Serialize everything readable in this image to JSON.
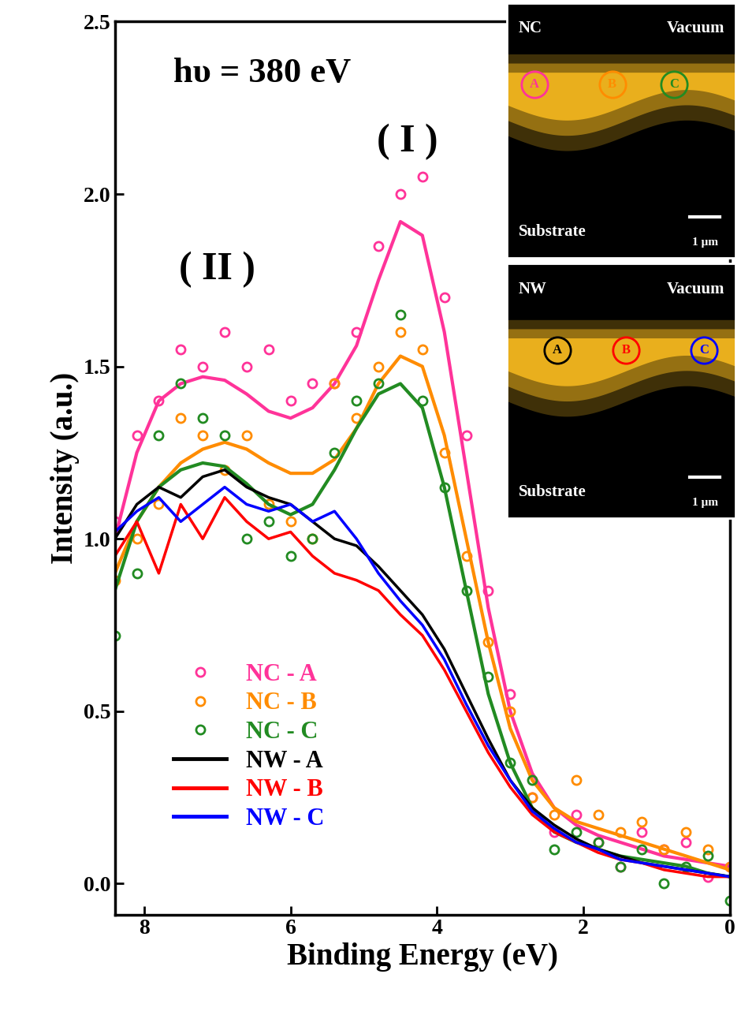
{
  "chart_data": {
    "type": "line",
    "x_label": "Binding Energy (eV)",
    "y_label": "Intensity (a.u.)",
    "annotations": [
      {
        "text": "hυ = 380 eV",
        "x": 7.6,
        "y": 2.35
      },
      {
        "text": "( I )",
        "x": 4.4,
        "y": 2.15
      },
      {
        "text": "( II )",
        "x": 7.0,
        "y": 1.78
      }
    ],
    "xlim": [
      8.4,
      0
    ],
    "ylim": [
      -0.09,
      2.5
    ],
    "xticks": [
      8,
      6,
      4,
      2,
      0
    ],
    "yticks": [
      {
        "value": 0,
        "label": "0.0"
      },
      {
        "value": 0.5,
        "label": "0.5"
      },
      {
        "value": 1.0,
        "label": "1.0"
      },
      {
        "value": 1.5,
        "label": "1.5"
      },
      {
        "value": 2.0,
        "label": "2.0"
      },
      {
        "value": 2.5,
        "label": "2.5"
      }
    ],
    "grid": false,
    "legend": "lower left",
    "x": [
      8.4,
      8.1,
      7.8,
      7.5,
      7.2,
      6.9,
      6.6,
      6.3,
      6.0,
      5.7,
      5.4,
      5.1,
      4.8,
      4.5,
      4.2,
      3.9,
      3.6,
      3.3,
      3.0,
      2.7,
      2.4,
      2.1,
      1.8,
      1.5,
      1.2,
      0.9,
      0.6,
      0.3,
      0.0
    ],
    "series": [
      {
        "name": "NC - A",
        "color": "#ff3399",
        "type": "scatter",
        "marker": "circle",
        "values": [
          1.05,
          1.3,
          1.4,
          1.55,
          1.5,
          1.6,
          1.5,
          1.55,
          1.4,
          1.45,
          1.45,
          1.6,
          1.85,
          2.0,
          2.05,
          1.7,
          1.3,
          0.85,
          0.55,
          0.25,
          0.15,
          0.2,
          0.12,
          0.05,
          0.15,
          0.1,
          0.12,
          0.02,
          0.05
        ],
        "fit": [
          1.0,
          1.25,
          1.4,
          1.45,
          1.47,
          1.46,
          1.42,
          1.37,
          1.35,
          1.38,
          1.45,
          1.56,
          1.75,
          1.92,
          1.88,
          1.6,
          1.2,
          0.8,
          0.5,
          0.32,
          0.22,
          0.17,
          0.14,
          0.12,
          0.1,
          0.08,
          0.07,
          0.06,
          0.05
        ]
      },
      {
        "name": "NC - B",
        "color": "#ff8c00",
        "type": "scatter",
        "marker": "circle",
        "values": [
          0.88,
          1.0,
          1.1,
          1.35,
          1.3,
          1.2,
          1.3,
          1.1,
          1.05,
          1.0,
          1.45,
          1.35,
          1.5,
          1.6,
          1.55,
          1.25,
          0.95,
          0.7,
          0.5,
          0.25,
          0.2,
          0.3,
          0.2,
          0.15,
          0.18,
          0.1,
          0.15,
          0.1,
          0.05
        ],
        "fit": [
          0.9,
          1.05,
          1.15,
          1.22,
          1.26,
          1.28,
          1.26,
          1.22,
          1.19,
          1.19,
          1.23,
          1.32,
          1.45,
          1.53,
          1.5,
          1.3,
          1.0,
          0.7,
          0.45,
          0.3,
          0.22,
          0.18,
          0.16,
          0.14,
          0.12,
          0.1,
          0.08,
          0.06,
          0.04
        ]
      },
      {
        "name": "NC - C",
        "color": "#228b22",
        "type": "scatter",
        "marker": "circle",
        "values": [
          0.72,
          0.9,
          1.3,
          1.45,
          1.35,
          1.3,
          1.0,
          1.05,
          0.95,
          1.0,
          1.25,
          1.4,
          1.45,
          1.65,
          1.4,
          1.15,
          0.85,
          0.6,
          0.35,
          0.3,
          0.1,
          0.15,
          0.12,
          0.05,
          0.1,
          0.0,
          0.05,
          0.08,
          -0.05
        ],
        "fit": [
          0.85,
          1.05,
          1.15,
          1.2,
          1.22,
          1.21,
          1.16,
          1.1,
          1.07,
          1.1,
          1.2,
          1.32,
          1.42,
          1.45,
          1.38,
          1.15,
          0.85,
          0.55,
          0.35,
          0.22,
          0.15,
          0.12,
          0.1,
          0.08,
          0.07,
          0.06,
          0.05,
          0.03,
          0.02
        ]
      },
      {
        "name": "NW - A",
        "color": "#000000",
        "type": "line",
        "line_style": "solid",
        "values": [
          1.0,
          1.1,
          1.15,
          1.12,
          1.18,
          1.2,
          1.15,
          1.12,
          1.1,
          1.05,
          1.0,
          0.98,
          0.92,
          0.85,
          0.78,
          0.68,
          0.55,
          0.42,
          0.3,
          0.22,
          0.17,
          0.13,
          0.1,
          0.08,
          0.06,
          0.05,
          0.04,
          0.03,
          0.02
        ]
      },
      {
        "name": "NW - B",
        "color": "#ff0000",
        "type": "line",
        "line_style": "solid",
        "values": [
          0.95,
          1.05,
          0.9,
          1.1,
          1.0,
          1.12,
          1.05,
          1.0,
          1.02,
          0.95,
          0.9,
          0.88,
          0.85,
          0.78,
          0.72,
          0.62,
          0.5,
          0.38,
          0.28,
          0.2,
          0.15,
          0.12,
          0.09,
          0.07,
          0.06,
          0.04,
          0.03,
          0.02,
          0.02
        ]
      },
      {
        "name": "NW - C",
        "color": "#0000ff",
        "type": "line",
        "line_style": "solid",
        "values": [
          1.02,
          1.08,
          1.12,
          1.05,
          1.1,
          1.15,
          1.1,
          1.08,
          1.1,
          1.05,
          1.08,
          1.0,
          0.9,
          0.82,
          0.75,
          0.65,
          0.52,
          0.4,
          0.3,
          0.21,
          0.16,
          0.12,
          0.1,
          0.07,
          0.06,
          0.05,
          0.04,
          0.03,
          0.02
        ]
      }
    ]
  },
  "insets": [
    {
      "label": "NC",
      "top": "Vacuum",
      "bottom": "Substrate",
      "scale": "1 μm",
      "points": [
        {
          "label": "A",
          "color": "#ff3399"
        },
        {
          "label": "B",
          "color": "#ff8c00"
        },
        {
          "label": "C",
          "color": "#228b22"
        }
      ]
    },
    {
      "label": "NW",
      "top": "Vacuum",
      "bottom": "Substrate",
      "scale": "1 μm",
      "points": [
        {
          "label": "A",
          "color": "#000000"
        },
        {
          "label": "B",
          "color": "#ff0000"
        },
        {
          "label": "C",
          "color": "#0000ff"
        }
      ]
    }
  ]
}
